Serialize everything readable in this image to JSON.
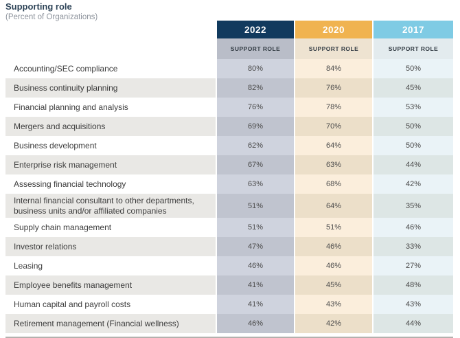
{
  "page": {
    "title": "Supporting role",
    "subtitle": "(Percent of Organizations)"
  },
  "table": {
    "columns": [
      {
        "year": "2022",
        "subheader": "SUPPORT ROLE",
        "header_bg": "#113a5e",
        "header_text": "#ffffff",
        "subheader_bg": "#b9bdc8",
        "cell_bg_light": "#cfd3de",
        "cell_bg_dark": "#c0c4cf"
      },
      {
        "year": "2020",
        "subheader": "SUPPORT ROLE",
        "header_bg": "#f0b350",
        "header_text": "#ffffff",
        "subheader_bg": "#eee3d1",
        "cell_bg_light": "#fbeedc",
        "cell_bg_dark": "#ecdfc9"
      },
      {
        "year": "2017",
        "subheader": "SUPPORT ROLE",
        "header_bg": "#7fcbe4",
        "header_text": "#ffffff",
        "subheader_bg": "#e3ebee",
        "cell_bg_light": "#eaf3f7",
        "cell_bg_dark": "#dde6e5"
      }
    ],
    "rows": [
      {
        "label": "Accounting/SEC compliance",
        "values": [
          "80%",
          "84%",
          "50%"
        ]
      },
      {
        "label": "Business continuity planning",
        "values": [
          "82%",
          "76%",
          "45%"
        ]
      },
      {
        "label": "Financial planning and analysis",
        "values": [
          "76%",
          "78%",
          "53%"
        ]
      },
      {
        "label": "Mergers and acquisitions",
        "values": [
          "69%",
          "70%",
          "50%"
        ]
      },
      {
        "label": "Business development",
        "values": [
          "62%",
          "64%",
          "50%"
        ]
      },
      {
        "label": "Enterprise risk management",
        "values": [
          "67%",
          "63%",
          "44%"
        ]
      },
      {
        "label": "Assessing financial technology",
        "values": [
          "63%",
          "68%",
          "42%"
        ]
      },
      {
        "label": "Internal financial consultant to other departments, business units and/or affiliated companies",
        "values": [
          "51%",
          "64%",
          "35%"
        ]
      },
      {
        "label": "Supply chain management",
        "values": [
          "51%",
          "51%",
          "46%"
        ]
      },
      {
        "label": "Investor relations",
        "values": [
          "47%",
          "46%",
          "33%"
        ]
      },
      {
        "label": "Leasing",
        "values": [
          "46%",
          "46%",
          "27%"
        ]
      },
      {
        "label": "Employee benefits management",
        "values": [
          "41%",
          "45%",
          "48%"
        ]
      },
      {
        "label": "Human capital and payroll costs",
        "values": [
          "41%",
          "43%",
          "43%"
        ]
      },
      {
        "label": "Retirement management (Financial wellness)",
        "values": [
          "46%",
          "42%",
          "44%"
        ]
      }
    ]
  },
  "chart_data": {
    "type": "table",
    "title": "Supporting role",
    "subtitle": "(Percent of Organizations)",
    "columns": [
      "2022 SUPPORT ROLE",
      "2020 SUPPORT ROLE",
      "2017 SUPPORT ROLE"
    ],
    "categories": [
      "Accounting/SEC compliance",
      "Business continuity planning",
      "Financial planning and analysis",
      "Mergers and acquisitions",
      "Business development",
      "Enterprise risk management",
      "Assessing financial technology",
      "Internal financial consultant to other departments, business units and/or affiliated companies",
      "Supply chain management",
      "Investor relations",
      "Leasing",
      "Employee benefits management",
      "Human capital and payroll costs",
      "Retirement management (Financial wellness)"
    ],
    "series": [
      {
        "name": "2022",
        "values": [
          80,
          82,
          76,
          69,
          62,
          67,
          63,
          51,
          51,
          47,
          46,
          41,
          41,
          46
        ]
      },
      {
        "name": "2020",
        "values": [
          84,
          76,
          78,
          70,
          64,
          63,
          68,
          64,
          51,
          46,
          46,
          45,
          43,
          42
        ]
      },
      {
        "name": "2017",
        "values": [
          50,
          45,
          53,
          50,
          50,
          44,
          42,
          35,
          46,
          33,
          27,
          48,
          43,
          44
        ]
      }
    ],
    "units": "percent"
  }
}
